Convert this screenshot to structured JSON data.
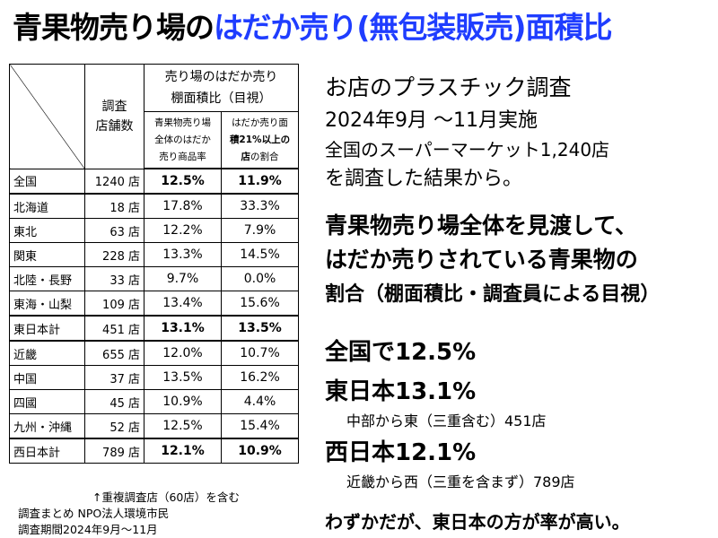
{
  "title": {
    "part1": "青果物売り場の",
    "part2": "はだか売り(無包装販売)面積比"
  },
  "table": {
    "header_count": "調査\n店舗数",
    "header_main": "売り場のはだか売り\n棚面積比（目視）",
    "header_a": "青果物売り場\n全体のはだか\n売り商品率",
    "header_b_pre": "はだか売り面\n",
    "header_b_bold": "積21%以上の\n店",
    "header_b_post": "の割合",
    "rows": [
      {
        "name": "全国",
        "count": "1240 店",
        "a": "12.5%",
        "b": "11.9%",
        "bold": true
      },
      {
        "name": "北海道",
        "count": "18 店",
        "a": "17.8%",
        "b": "33.3%",
        "bold": false
      },
      {
        "name": "東北",
        "count": "63 店",
        "a": "12.2%",
        "b": "7.9%",
        "bold": false
      },
      {
        "name": "関東",
        "count": "228 店",
        "a": "13.3%",
        "b": "14.5%",
        "bold": false
      },
      {
        "name": "北陸・長野",
        "count": "33 店",
        "a": "9.7%",
        "b": "0.0%",
        "bold": false
      },
      {
        "name": "東海・山梨",
        "count": "109 店",
        "a": "13.4%",
        "b": "15.6%",
        "bold": false
      },
      {
        "name": "東日本計",
        "count": "451 店",
        "a": "13.1%",
        "b": "13.5%",
        "bold": true
      },
      {
        "name": "近畿",
        "count": "655 店",
        "a": "12.0%",
        "b": "10.7%",
        "bold": false
      },
      {
        "name": "中国",
        "count": "37 店",
        "a": "13.5%",
        "b": "16.2%",
        "bold": false
      },
      {
        "name": "四國",
        "count": "45 店",
        "a": "10.9%",
        "b": "4.4%",
        "bold": false
      },
      {
        "name": "九州・沖縄",
        "count": "52 店",
        "a": "12.5%",
        "b": "15.4%",
        "bold": false
      },
      {
        "name": "西日本計",
        "count": "789 店",
        "a": "12.1%",
        "b": "10.9%",
        "bold": true
      }
    ]
  },
  "notes": {
    "line1": "↑重複調査店（60店）を含む",
    "line2": "調査まとめ NPO法人環境市民",
    "line3": "調査期間2024年9月～11月"
  },
  "right": {
    "l1": "お店のプラスチック調査",
    "l2": "2024年9月 ～11月実施",
    "l3": "全国のスーパーマーケット1,240店",
    "l4": "を調査した結果から。",
    "l5": "青果物売り場全体を見渡して、",
    "l6": "はだか売りされている青果物の",
    "l7": "割合（棚面積比・調査員による目視）",
    "l8": "全国で12.5%",
    "l9": "東日本13.1%",
    "l10": "中部から東（三重含む）451店",
    "l11": "西日本12.1%",
    "l12": "近畿から西（三重を含まず）789店",
    "l13": "わずかだが、東日本の方が率が高い。"
  },
  "colors": {
    "accent": "#1f3dff"
  }
}
